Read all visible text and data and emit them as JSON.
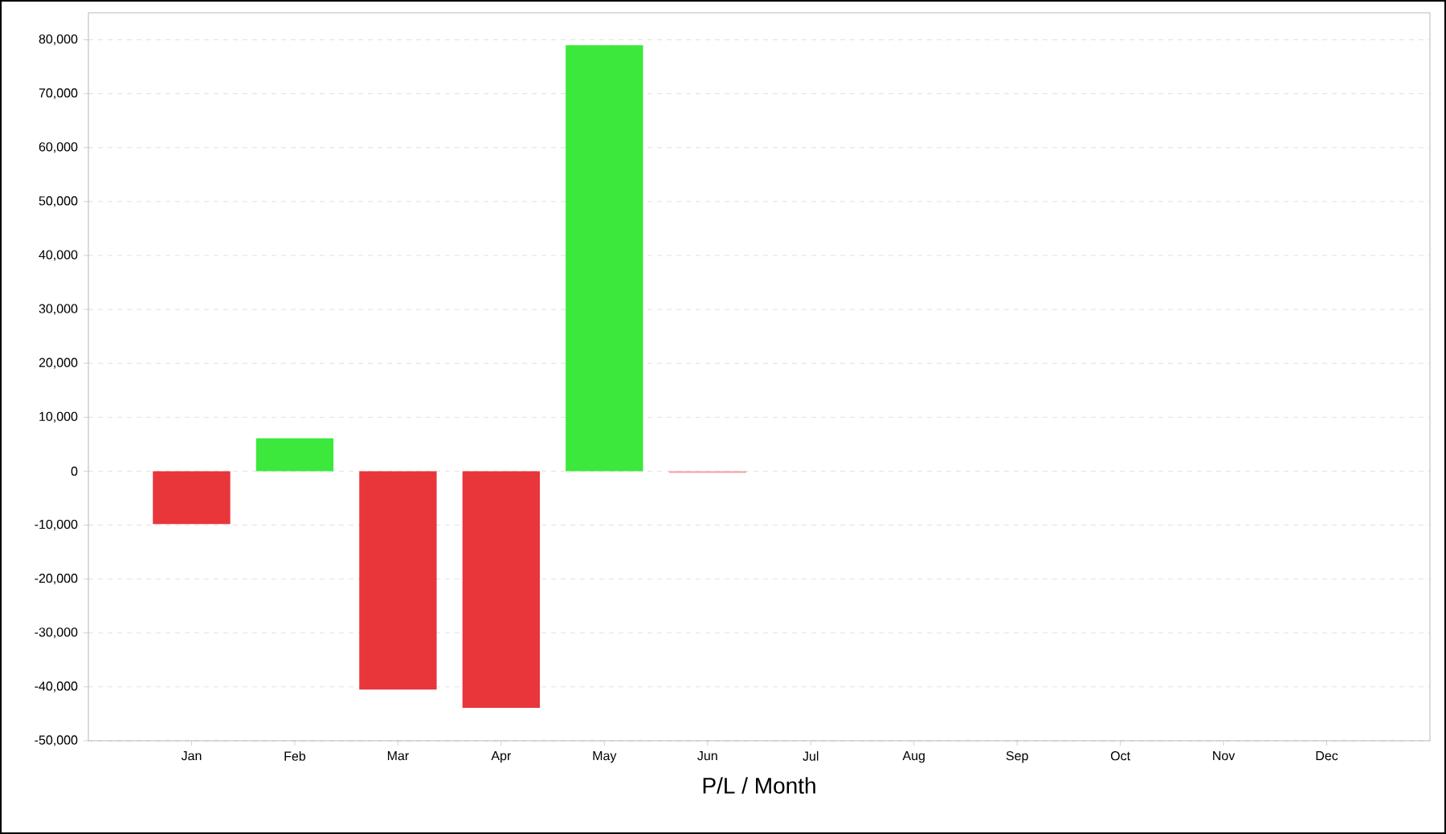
{
  "chart_data": {
    "type": "bar",
    "xlabel": "P/L / Month",
    "categories": [
      "Jan",
      "Feb",
      "Mar",
      "Apr",
      "May",
      "Jun",
      "Jul",
      "Aug",
      "Sep",
      "Oct",
      "Nov",
      "Dec"
    ],
    "values": [
      -9800,
      6100,
      -40500,
      -43900,
      79000,
      -300,
      null,
      null,
      null,
      null,
      null,
      null
    ],
    "colors": [
      "#e8363b",
      "#3ce83c",
      "#e8363b",
      "#e8363b",
      "#3ce83c",
      "#f4a0a0",
      "#e8363b",
      "#e8363b",
      "#e8363b",
      "#e8363b",
      "#e8363b",
      "#e8363b"
    ],
    "ylim": [
      -50000,
      85000
    ],
    "yticks": [
      {
        "value": -50000,
        "label": "-50,000"
      },
      {
        "value": -40000,
        "label": "-40,000"
      },
      {
        "value": -30000,
        "label": "-30,000"
      },
      {
        "value": -20000,
        "label": "-20,000"
      },
      {
        "value": -10000,
        "label": "-10,000"
      },
      {
        "value": 0,
        "label": "0"
      },
      {
        "value": 10000,
        "label": "10,000"
      },
      {
        "value": 20000,
        "label": "20,000"
      },
      {
        "value": 30000,
        "label": "30,000"
      },
      {
        "value": 40000,
        "label": "40,000"
      },
      {
        "value": 50000,
        "label": "50,000"
      },
      {
        "value": 60000,
        "label": "60,000"
      },
      {
        "value": 70000,
        "label": "70,000"
      },
      {
        "value": 80000,
        "label": "80,000"
      }
    ],
    "grid": "y"
  }
}
